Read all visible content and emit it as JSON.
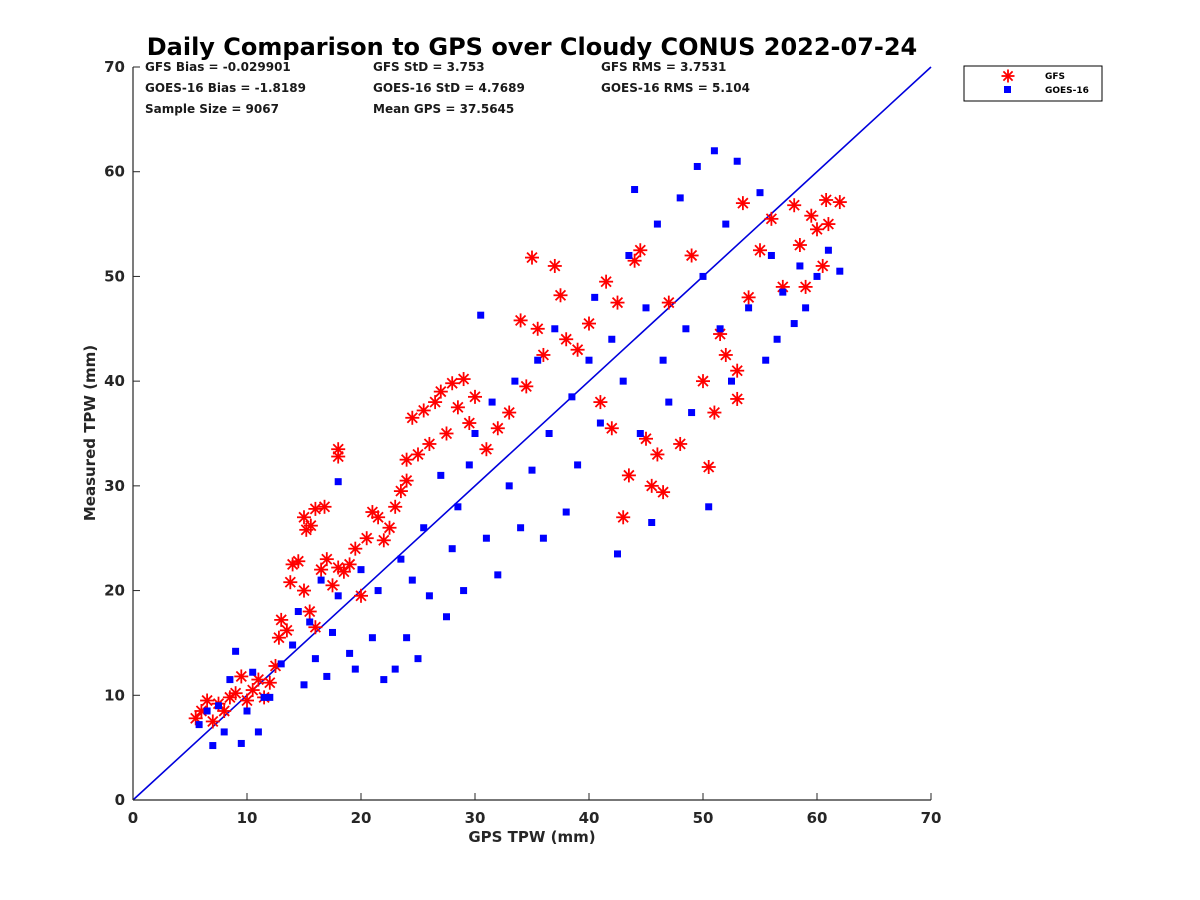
{
  "chart_data": {
    "type": "scatter",
    "title": "Daily Comparison to GPS over Cloudy CONUS 2022-07-24",
    "xlabel": "GPS TPW (mm)",
    "ylabel": "Measured TPW (mm)",
    "xlim": [
      0,
      70
    ],
    "ylim": [
      0,
      70
    ],
    "xticks": [
      "0",
      "10",
      "20",
      "30",
      "40",
      "50",
      "60",
      "70"
    ],
    "yticks": [
      "0",
      "10",
      "20",
      "30",
      "40",
      "50",
      "60",
      "70"
    ],
    "grid": false,
    "legend_position": "outside-top-right",
    "stats": [
      [
        "GFS Bias = -0.029901",
        "GFS StD = 3.753",
        "GFS RMS = 3.7531"
      ],
      [
        "GOES-16 Bias = -1.8189",
        "GOES-16 StD = 4.7689",
        "GOES-16 RMS = 5.104"
      ],
      [
        "Sample Size = 9067",
        "Mean GPS = 37.5645"
      ]
    ],
    "reference_line": {
      "x": [
        0,
        70
      ],
      "y": [
        0,
        70
      ],
      "color": "#0000dd"
    },
    "series": [
      {
        "name": "GFS",
        "marker": "asterisk",
        "color": "#ff0000",
        "points": [
          [
            5.5,
            7.8
          ],
          [
            6,
            8.5
          ],
          [
            6.5,
            9.5
          ],
          [
            7,
            7.5
          ],
          [
            7.5,
            9.2
          ],
          [
            8,
            8.5
          ],
          [
            8.5,
            9.8
          ],
          [
            9,
            10.2
          ],
          [
            9.5,
            11.8
          ],
          [
            10,
            9.5
          ],
          [
            10.5,
            10.5
          ],
          [
            11,
            11.5
          ],
          [
            11.5,
            9.8
          ],
          [
            12,
            11.2
          ],
          [
            12.5,
            12.8
          ],
          [
            12.8,
            15.5
          ],
          [
            13,
            17.2
          ],
          [
            13.5,
            16.2
          ],
          [
            13.8,
            20.8
          ],
          [
            14,
            22.5
          ],
          [
            14.5,
            22.8
          ],
          [
            15,
            20
          ],
          [
            15,
            27
          ],
          [
            15.2,
            25.8
          ],
          [
            15.6,
            26.2
          ],
          [
            15.5,
            18
          ],
          [
            16,
            16.5
          ],
          [
            16,
            27.8
          ],
          [
            16.5,
            22
          ],
          [
            16.8,
            28
          ],
          [
            17,
            23
          ],
          [
            17.5,
            20.5
          ],
          [
            18,
            22.2
          ],
          [
            18,
            33.5
          ],
          [
            18,
            32.8
          ],
          [
            18.5,
            21.8
          ],
          [
            19,
            22.5
          ],
          [
            19.5,
            24
          ],
          [
            20,
            19.5
          ],
          [
            20.5,
            25
          ],
          [
            21,
            27.5
          ],
          [
            21.5,
            27
          ],
          [
            22,
            24.8
          ],
          [
            22.5,
            26
          ],
          [
            23,
            28
          ],
          [
            23.5,
            29.5
          ],
          [
            24,
            30.5
          ],
          [
            24,
            32.5
          ],
          [
            24.5,
            36.5
          ],
          [
            25,
            33
          ],
          [
            25.5,
            37.2
          ],
          [
            26,
            34
          ],
          [
            26.5,
            38
          ],
          [
            27,
            39
          ],
          [
            27.5,
            35
          ],
          [
            28,
            39.8
          ],
          [
            28.5,
            37.5
          ],
          [
            29,
            40.2
          ],
          [
            29.5,
            36
          ],
          [
            30,
            38.5
          ],
          [
            31,
            33.5
          ],
          [
            32,
            35.5
          ],
          [
            33,
            37
          ],
          [
            34,
            45.8
          ],
          [
            34.5,
            39.5
          ],
          [
            35,
            51.8
          ],
          [
            35.5,
            45
          ],
          [
            36,
            42.5
          ],
          [
            37,
            51
          ],
          [
            37.5,
            48.2
          ],
          [
            38,
            44
          ],
          [
            39,
            43
          ],
          [
            40,
            45.5
          ],
          [
            41,
            38
          ],
          [
            41.5,
            49.5
          ],
          [
            42,
            35.5
          ],
          [
            42.5,
            47.5
          ],
          [
            43,
            27
          ],
          [
            43.5,
            31
          ],
          [
            44,
            51.5
          ],
          [
            44.5,
            52.5
          ],
          [
            45,
            34.5
          ],
          [
            45.5,
            30
          ],
          [
            46,
            33
          ],
          [
            46.5,
            29.4
          ],
          [
            47,
            47.5
          ],
          [
            48,
            34
          ],
          [
            49,
            52
          ],
          [
            50,
            40
          ],
          [
            50.5,
            31.8
          ],
          [
            51,
            37
          ],
          [
            51.5,
            44.5
          ],
          [
            52,
            42.5
          ],
          [
            53,
            38.3
          ],
          [
            53,
            41
          ],
          [
            53.5,
            57
          ],
          [
            54,
            48
          ],
          [
            55,
            52.5
          ],
          [
            56,
            55.5
          ],
          [
            57,
            49
          ],
          [
            58,
            56.8
          ],
          [
            58.5,
            53
          ],
          [
            59,
            49
          ],
          [
            59.5,
            55.8
          ],
          [
            60,
            54.5
          ],
          [
            60.5,
            51
          ],
          [
            60.8,
            57.3
          ],
          [
            61,
            55
          ],
          [
            62,
            57.1
          ]
        ]
      },
      {
        "name": "GOES-16",
        "marker": "square",
        "color": "#0000ff",
        "points": [
          [
            5.8,
            7.2
          ],
          [
            6.5,
            8.5
          ],
          [
            7,
            5.2
          ],
          [
            7.5,
            9
          ],
          [
            8,
            6.5
          ],
          [
            8.5,
            11.5
          ],
          [
            9,
            14.2
          ],
          [
            9.5,
            5.4
          ],
          [
            10,
            8.5
          ],
          [
            10.5,
            12.2
          ],
          [
            11,
            6.5
          ],
          [
            11.5,
            9.8
          ],
          [
            12,
            9.8
          ],
          [
            13,
            13
          ],
          [
            14,
            14.8
          ],
          [
            14.5,
            18
          ],
          [
            15,
            11
          ],
          [
            15.5,
            17
          ],
          [
            16,
            13.5
          ],
          [
            16.5,
            21
          ],
          [
            17,
            11.8
          ],
          [
            17.5,
            16
          ],
          [
            18,
            30.4
          ],
          [
            18,
            19.5
          ],
          [
            19,
            14
          ],
          [
            19.5,
            12.5
          ],
          [
            20,
            22
          ],
          [
            21,
            15.5
          ],
          [
            21.5,
            20
          ],
          [
            22,
            11.5
          ],
          [
            23,
            12.5
          ],
          [
            23.5,
            23
          ],
          [
            24,
            15.5
          ],
          [
            24.5,
            21
          ],
          [
            25,
            13.5
          ],
          [
            25.5,
            26
          ],
          [
            26,
            19.5
          ],
          [
            27,
            31
          ],
          [
            27.5,
            17.5
          ],
          [
            28,
            24
          ],
          [
            28.5,
            28
          ],
          [
            29,
            20
          ],
          [
            29.5,
            32
          ],
          [
            30,
            35
          ],
          [
            30.5,
            46.3
          ],
          [
            31,
            25
          ],
          [
            31.5,
            38
          ],
          [
            32,
            21.5
          ],
          [
            33,
            30
          ],
          [
            33.5,
            40
          ],
          [
            34,
            26
          ],
          [
            35,
            31.5
          ],
          [
            35.5,
            42
          ],
          [
            36,
            25
          ],
          [
            36.5,
            35
          ],
          [
            37,
            45
          ],
          [
            38,
            27.5
          ],
          [
            38.5,
            38.5
          ],
          [
            39,
            32
          ],
          [
            40,
            42
          ],
          [
            40.5,
            48
          ],
          [
            41,
            36
          ],
          [
            42,
            44
          ],
          [
            42.5,
            23.5
          ],
          [
            43,
            40
          ],
          [
            43.5,
            52
          ],
          [
            44,
            58.3
          ],
          [
            44.5,
            35
          ],
          [
            45,
            47
          ],
          [
            45.5,
            26.5
          ],
          [
            46,
            55
          ],
          [
            46.5,
            42
          ],
          [
            47,
            38
          ],
          [
            48,
            57.5
          ],
          [
            48.5,
            45
          ],
          [
            49,
            37
          ],
          [
            49.5,
            60.5
          ],
          [
            50,
            50
          ],
          [
            50.5,
            28
          ],
          [
            51,
            62
          ],
          [
            51.5,
            45
          ],
          [
            52,
            55
          ],
          [
            52.5,
            40
          ],
          [
            53,
            61
          ],
          [
            54,
            47
          ],
          [
            55,
            58
          ],
          [
            55.5,
            42
          ],
          [
            56,
            52
          ],
          [
            56.5,
            44
          ],
          [
            57,
            48.5
          ],
          [
            58,
            45.5
          ],
          [
            58.5,
            51
          ],
          [
            59,
            47
          ],
          [
            60,
            50
          ],
          [
            61,
            52.5
          ],
          [
            62,
            50.5
          ]
        ]
      }
    ]
  }
}
